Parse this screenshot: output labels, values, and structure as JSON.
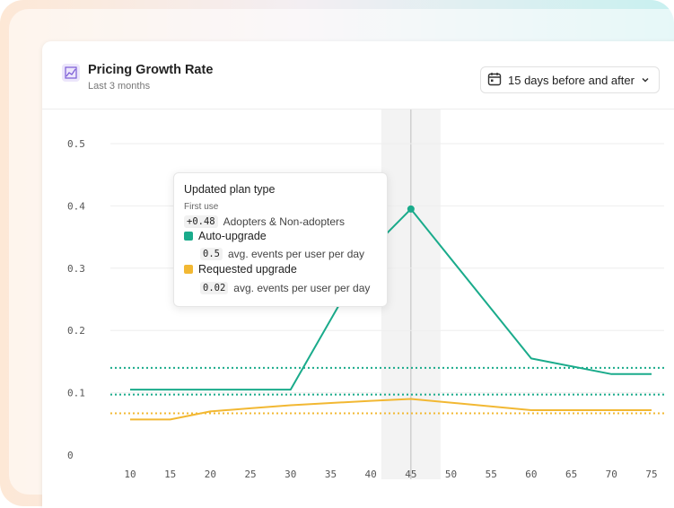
{
  "header": {
    "title": "Pricing Growth Rate",
    "subtitle": "Last 3 months",
    "range_label": "15 days before and after",
    "icon": "line-chart-icon"
  },
  "tooltip": {
    "title": "Updated plan type",
    "subtitle": "First use",
    "delta_value": "+0.48",
    "delta_label": "Adopters & Non-adopters",
    "items": [
      {
        "name": "Auto-upgrade",
        "value": "0.5",
        "label": "avg. events per user per day",
        "color": "#1aab8b"
      },
      {
        "name": "Requested upgrade",
        "value": "0.02",
        "label": "avg. events per user per day",
        "color": "#f2b833"
      }
    ]
  },
  "chart_data": {
    "type": "line",
    "x": [
      10,
      15,
      20,
      25,
      30,
      35,
      40,
      45,
      50,
      55,
      60,
      65,
      70,
      75
    ],
    "series": [
      {
        "name": "Auto-upgrade",
        "color": "#1aab8b",
        "points": [
          [
            10,
            0.105
          ],
          [
            15,
            0.105
          ],
          [
            20,
            0.105
          ],
          [
            25,
            0.105
          ],
          [
            30,
            0.105
          ],
          [
            40,
            0.33
          ],
          [
            45,
            0.395
          ],
          [
            60,
            0.155
          ],
          [
            70,
            0.13
          ],
          [
            75,
            0.13
          ]
        ]
      },
      {
        "name": "Requested upgrade",
        "color": "#f2b833",
        "points": [
          [
            10,
            0.057
          ],
          [
            15,
            0.057
          ],
          [
            20,
            0.07
          ],
          [
            25,
            0.075
          ],
          [
            30,
            0.08
          ],
          [
            40,
            0.087
          ],
          [
            45,
            0.09
          ],
          [
            60,
            0.072
          ],
          [
            70,
            0.072
          ],
          [
            75,
            0.072
          ]
        ]
      }
    ],
    "reference_lines": [
      {
        "color": "#1aab8b",
        "y": 0.14
      },
      {
        "color": "#1aab8b",
        "y": 0.097
      },
      {
        "color": "#f2b833",
        "y": 0.067
      }
    ],
    "highlight_x": 45,
    "y_ticks": [
      0,
      0.1,
      0.2,
      0.3,
      0.4,
      0.5
    ],
    "y_tick_labels": [
      "0",
      "0.1",
      "0.2",
      "0.3",
      "0.4",
      "0.5"
    ],
    "x_tick_labels": [
      "10",
      "15",
      "20",
      "25",
      "30",
      "35",
      "40",
      "45",
      "50",
      "55",
      "60",
      "65",
      "70",
      "75"
    ],
    "ylim": [
      0,
      0.5
    ],
    "grid": true
  }
}
